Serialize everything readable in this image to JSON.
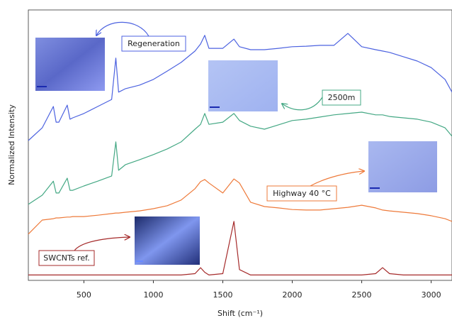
{
  "chart_data": {
    "type": "line",
    "x_label": "Shift (cm⁻¹)",
    "y_label": "Normalized Intensity",
    "x": [
      100,
      200,
      280,
      300,
      320,
      380,
      400,
      420,
      500,
      600,
      700,
      730,
      750,
      800,
      900,
      1000,
      1100,
      1200,
      1300,
      1340,
      1370,
      1400,
      1500,
      1580,
      1620,
      1700,
      1800,
      1900,
      2000,
      2100,
      2200,
      2300,
      2400,
      2500,
      2600,
      2650,
      2700,
      2800,
      2900,
      3000,
      3100,
      3150
    ],
    "xlim": [
      100,
      3150
    ],
    "xticks": [
      500,
      1000,
      1500,
      2000,
      2500,
      3000
    ],
    "ylim": [
      0,
      1
    ],
    "grid": false,
    "series": [
      {
        "label": "Regeneration",
        "color": "#4c62e0",
        "values": [
          0.517,
          0.564,
          0.643,
          0.585,
          0.585,
          0.648,
          0.596,
          0.601,
          0.617,
          0.643,
          0.669,
          0.822,
          0.696,
          0.709,
          0.722,
          0.743,
          0.774,
          0.806,
          0.848,
          0.874,
          0.906,
          0.858,
          0.858,
          0.892,
          0.864,
          0.853,
          0.853,
          0.858,
          0.864,
          0.866,
          0.869,
          0.869,
          0.913,
          0.864,
          0.853,
          0.848,
          0.843,
          0.827,
          0.811,
          0.787,
          0.743,
          0.696
        ]
      },
      {
        "label": "2500m",
        "color": "#44a884",
        "values": [
          0.281,
          0.315,
          0.367,
          0.323,
          0.323,
          0.378,
          0.333,
          0.333,
          0.349,
          0.367,
          0.386,
          0.512,
          0.407,
          0.428,
          0.446,
          0.465,
          0.486,
          0.512,
          0.559,
          0.577,
          0.617,
          0.577,
          0.585,
          0.617,
          0.591,
          0.57,
          0.559,
          0.575,
          0.591,
          0.596,
          0.604,
          0.612,
          0.617,
          0.622,
          0.612,
          0.612,
          0.606,
          0.601,
          0.596,
          0.585,
          0.564,
          0.533
        ]
      },
      {
        "label": "Highway 40 °C",
        "color": "#ee7a3a",
        "values": [
          0.171,
          0.223,
          0.228,
          0.231,
          0.231,
          0.234,
          0.234,
          0.236,
          0.236,
          0.241,
          0.247,
          0.249,
          0.249,
          0.252,
          0.257,
          0.265,
          0.276,
          0.297,
          0.339,
          0.365,
          0.373,
          0.36,
          0.323,
          0.375,
          0.36,
          0.289,
          0.273,
          0.268,
          0.262,
          0.26,
          0.26,
          0.265,
          0.27,
          0.278,
          0.268,
          0.26,
          0.257,
          0.252,
          0.247,
          0.239,
          0.228,
          0.218
        ]
      },
      {
        "label": "SWCNTs ref.",
        "color": "#a52a2a",
        "values": [
          0.02,
          0.02,
          0.02,
          0.02,
          0.02,
          0.02,
          0.02,
          0.02,
          0.02,
          0.02,
          0.02,
          0.02,
          0.02,
          0.02,
          0.02,
          0.02,
          0.02,
          0.02,
          0.025,
          0.047,
          0.03,
          0.02,
          0.025,
          0.218,
          0.04,
          0.02,
          0.02,
          0.02,
          0.02,
          0.02,
          0.02,
          0.02,
          0.02,
          0.02,
          0.025,
          0.047,
          0.025,
          0.02,
          0.02,
          0.02,
          0.02,
          0.02
        ]
      }
    ]
  }
}
